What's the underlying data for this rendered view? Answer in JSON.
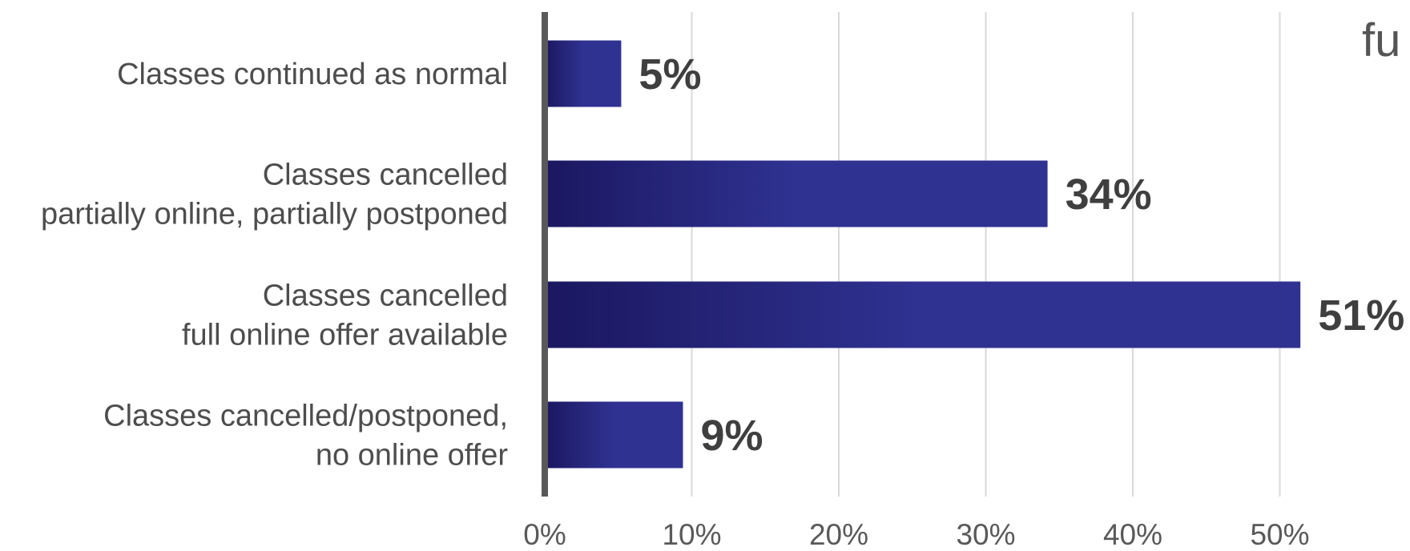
{
  "chart_data": {
    "type": "bar",
    "orientation": "horizontal",
    "categories": [
      [
        "Classes continued as normal"
      ],
      [
        "Classes cancelled",
        "partially online, partially postponed"
      ],
      [
        "Classes cancelled",
        "full online offer available"
      ],
      [
        "Classes cancelled/postponed,",
        "no online offer"
      ]
    ],
    "values": [
      5.2,
      34.2,
      51.4,
      9.4
    ],
    "value_labels": [
      "5%",
      "34%",
      "51%",
      "9%"
    ],
    "xlim": [
      0,
      55
    ],
    "xticks": [
      0,
      10,
      20,
      30,
      40,
      50
    ],
    "xtick_labels": [
      "0%",
      "10%",
      "20%",
      "30%",
      "40%",
      "50%"
    ],
    "grid": "vertical",
    "colors": {
      "bar_start": "#1b1760",
      "bar_end": "#2f3291",
      "axis": "#595959",
      "grid": "#d9d9d9"
    }
  },
  "corner_text": "fu"
}
